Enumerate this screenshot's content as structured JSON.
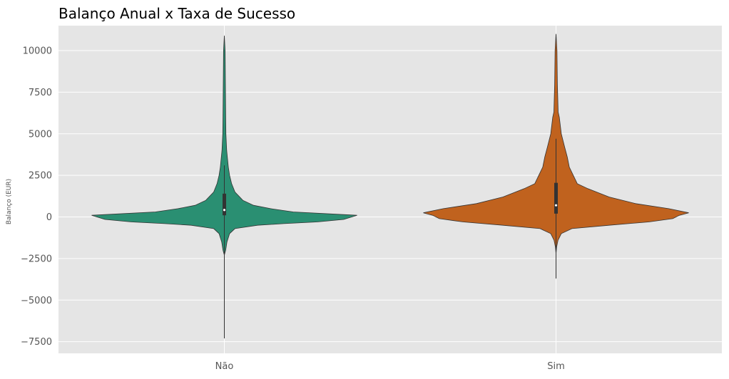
{
  "chart_data": {
    "type": "violin",
    "title": "Balanço Anual x Taxa de Sucesso",
    "xlabel": "",
    "ylabel": "Balanço (EUR)",
    "categories": [
      "Não",
      "Sim"
    ],
    "ylim": [
      -8200,
      11500
    ],
    "yticks": [
      -7500,
      -5000,
      -2500,
      0,
      2500,
      5000,
      7500,
      10000
    ],
    "ytick_labels": [
      "−7500",
      "−5000",
      "−2500",
      "0",
      "2500",
      "5000",
      "7500",
      "10000"
    ],
    "grid": true,
    "background": "#e5e5e5",
    "series": [
      {
        "category": "Não",
        "color": "#2a8f72",
        "min": -7300,
        "max": 10900,
        "whisker_low": -7300,
        "whisker_high": 3100,
        "q1": 100,
        "median": 420,
        "q3": 1400,
        "profile": [
          [
            -7300,
            0.0
          ],
          [
            -2300,
            0.0
          ],
          [
            -2000,
            0.01
          ],
          [
            -1500,
            0.02
          ],
          [
            -1000,
            0.04
          ],
          [
            -700,
            0.08
          ],
          [
            -500,
            0.25
          ],
          [
            -400,
            0.45
          ],
          [
            -300,
            0.7
          ],
          [
            -150,
            0.9
          ],
          [
            100,
            1.0
          ],
          [
            300,
            0.52
          ],
          [
            500,
            0.35
          ],
          [
            700,
            0.22
          ],
          [
            1000,
            0.14
          ],
          [
            1500,
            0.08
          ],
          [
            2000,
            0.055
          ],
          [
            2500,
            0.04
          ],
          [
            3000,
            0.03
          ],
          [
            4000,
            0.018
          ],
          [
            5000,
            0.012
          ],
          [
            6000,
            0.01
          ],
          [
            8000,
            0.008
          ],
          [
            10000,
            0.006
          ],
          [
            10900,
            0.0
          ]
        ]
      },
      {
        "category": "Sim",
        "color": "#c0621e",
        "min": -3700,
        "max": 11000,
        "whisker_low": -3700,
        "whisker_high": 4700,
        "q1": 200,
        "median": 700,
        "q3": 2050,
        "profile": [
          [
            -3700,
            0.0
          ],
          [
            -2200,
            0.0
          ],
          [
            -1800,
            0.005
          ],
          [
            -1400,
            0.015
          ],
          [
            -1000,
            0.04
          ],
          [
            -700,
            0.12
          ],
          [
            -500,
            0.4
          ],
          [
            -300,
            0.7
          ],
          [
            -100,
            0.88
          ],
          [
            100,
            0.93
          ],
          [
            250,
            1.0
          ],
          [
            500,
            0.85
          ],
          [
            800,
            0.6
          ],
          [
            1200,
            0.4
          ],
          [
            1700,
            0.24
          ],
          [
            2000,
            0.16
          ],
          [
            2500,
            0.13
          ],
          [
            3000,
            0.1
          ],
          [
            3600,
            0.085
          ],
          [
            4200,
            0.065
          ],
          [
            5000,
            0.04
          ],
          [
            6000,
            0.025
          ],
          [
            6300,
            0.016
          ],
          [
            8000,
            0.01
          ],
          [
            10000,
            0.007
          ],
          [
            11000,
            0.0
          ]
        ]
      }
    ]
  }
}
